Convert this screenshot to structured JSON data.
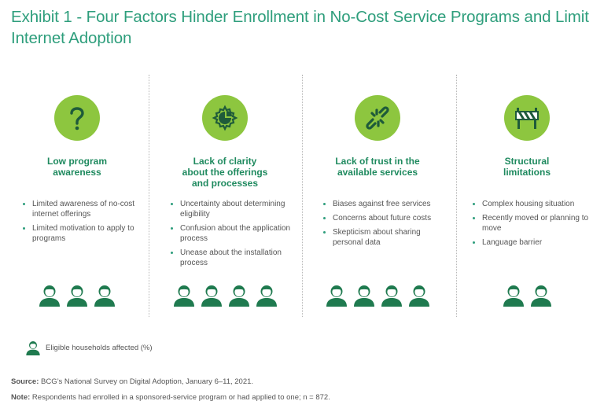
{
  "title": "Exhibit 1 - Four Factors Hinder Enrollment in No-Cost Service Programs and Limit Internet Adoption",
  "colors": {
    "title": "#2e9e7c",
    "icon_circle": "#8dc63f",
    "heading": "#1f8a5f",
    "person": "#1f7a4f"
  },
  "factors": [
    {
      "icon": "question-mark-icon",
      "heading": "Low program awareness",
      "bullets": [
        "Limited awareness of no-cost internet offerings",
        "Limited motivation to apply to programs"
      ],
      "people": 3
    },
    {
      "icon": "gear-chart-icon",
      "heading": "Lack of clarity about the offerings and processes",
      "bullets": [
        "Uncertainty about determining eligibility",
        "Confusion about the application process",
        "Unease about the installation process"
      ],
      "people": 4
    },
    {
      "icon": "broken-link-icon",
      "heading": "Lack of trust in the available services",
      "bullets": [
        "Biases against free services",
        "Concerns about future costs",
        "Skepticism about sharing personal data"
      ],
      "people": 4
    },
    {
      "icon": "barrier-icon",
      "heading": "Structural limitations",
      "bullets": [
        "Complex housing situation",
        "Recently moved or planning to move",
        "Language barrier"
      ],
      "people": 2
    }
  ],
  "legend": {
    "label": "Eligible households affected (%)",
    "icon": "person-icon"
  },
  "source": {
    "label": "Source:",
    "text": "BCG’s National Survey on Digital Adoption, January 6–11, 2021."
  },
  "note": {
    "label": "Note:",
    "text": "Respondents had enrolled in a sponsored-service program or had applied to one; n = 872."
  }
}
